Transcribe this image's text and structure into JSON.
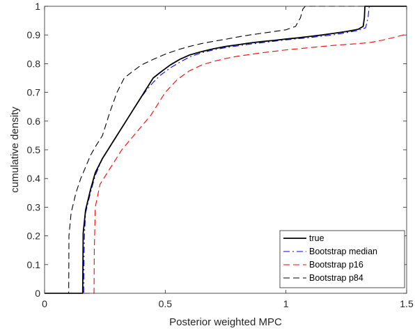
{
  "chart_data": {
    "type": "line",
    "title": "",
    "xlabel": "Posterior weighted MPC",
    "ylabel": "cumulative density",
    "xlim": [
      0,
      1.5
    ],
    "ylim": [
      0,
      1
    ],
    "x_ticks": [
      0,
      0.5,
      1,
      1.5
    ],
    "x_tick_labels": [
      "0",
      "0.5",
      "1",
      "1.5"
    ],
    "y_ticks": [
      0,
      0.1,
      0.2,
      0.3,
      0.4,
      0.5,
      0.6,
      0.7,
      0.8,
      0.9,
      1
    ],
    "y_tick_labels": [
      "0",
      "0.1",
      "0.2",
      "0.3",
      "0.4",
      "0.5",
      "0.6",
      "0.7",
      "0.8",
      "0.9",
      "1"
    ],
    "grid": false,
    "legend_position": "bottom-right",
    "series": [
      {
        "name": "true",
        "color": "#000000",
        "style": "solid",
        "x": [
          0,
          0.158,
          0.159,
          0.16,
          0.17,
          0.19,
          0.21,
          0.24,
          0.27,
          0.3,
          0.33,
          0.36,
          0.39,
          0.42,
          0.45,
          0.48,
          0.52,
          0.56,
          0.6,
          0.65,
          0.7,
          0.75,
          0.8,
          0.85,
          0.9,
          0.95,
          1.0,
          1.05,
          1.1,
          1.15,
          1.2,
          1.25,
          1.3,
          1.32,
          1.325,
          1.327,
          1.35,
          1.4,
          1.45,
          1.5
        ],
        "y": [
          0,
          0,
          0.1,
          0.21,
          0.29,
          0.36,
          0.42,
          0.47,
          0.51,
          0.55,
          0.59,
          0.63,
          0.67,
          0.71,
          0.75,
          0.77,
          0.795,
          0.815,
          0.83,
          0.842,
          0.852,
          0.86,
          0.866,
          0.872,
          0.877,
          0.881,
          0.886,
          0.89,
          0.895,
          0.9,
          0.906,
          0.912,
          0.92,
          0.93,
          0.96,
          1.0,
          1.0,
          1.0,
          1.0,
          1.0
        ]
      },
      {
        "name": "Bootstrap median",
        "color": "#0000ff",
        "style": "dashdot",
        "x": [
          0,
          0.162,
          0.163,
          0.165,
          0.17,
          0.19,
          0.21,
          0.24,
          0.27,
          0.3,
          0.33,
          0.36,
          0.39,
          0.42,
          0.45,
          0.48,
          0.52,
          0.56,
          0.6,
          0.65,
          0.7,
          0.75,
          0.8,
          0.85,
          0.9,
          0.95,
          1.0,
          1.05,
          1.1,
          1.15,
          1.2,
          1.25,
          1.3,
          1.33,
          1.34,
          1.345,
          1.35,
          1.4,
          1.45,
          1.5
        ],
        "y": [
          0,
          0,
          0.1,
          0.2,
          0.28,
          0.35,
          0.41,
          0.47,
          0.51,
          0.55,
          0.59,
          0.63,
          0.67,
          0.705,
          0.735,
          0.76,
          0.785,
          0.805,
          0.823,
          0.838,
          0.848,
          0.856,
          0.862,
          0.868,
          0.873,
          0.878,
          0.883,
          0.887,
          0.891,
          0.896,
          0.901,
          0.908,
          0.916,
          0.925,
          0.96,
          1.0,
          1.0,
          1.0,
          1.0,
          1.0
        ]
      },
      {
        "name": "Bootstrap p16",
        "color": "#ff0000",
        "style": "dashed",
        "x": [
          0,
          0.205,
          0.206,
          0.21,
          0.23,
          0.26,
          0.29,
          0.32,
          0.35,
          0.38,
          0.41,
          0.44,
          0.47,
          0.5,
          0.55,
          0.6,
          0.65,
          0.7,
          0.75,
          0.8,
          0.85,
          0.9,
          0.95,
          1.0,
          1.05,
          1.1,
          1.15,
          1.2,
          1.25,
          1.3,
          1.35,
          1.4,
          1.45,
          1.5
        ],
        "y": [
          0,
          0,
          0.15,
          0.3,
          0.38,
          0.42,
          0.46,
          0.5,
          0.53,
          0.56,
          0.59,
          0.62,
          0.66,
          0.7,
          0.745,
          0.775,
          0.795,
          0.808,
          0.818,
          0.826,
          0.832,
          0.838,
          0.843,
          0.848,
          0.852,
          0.856,
          0.86,
          0.864,
          0.867,
          0.87,
          0.874,
          0.882,
          0.892,
          0.903
        ]
      },
      {
        "name": "Bootstrap p84",
        "color": "#000000",
        "style": "dashed",
        "x": [
          0,
          0.1,
          0.101,
          0.11,
          0.13,
          0.15,
          0.17,
          0.19,
          0.21,
          0.24,
          0.27,
          0.3,
          0.33,
          0.36,
          0.4,
          0.45,
          0.5,
          0.55,
          0.6,
          0.65,
          0.7,
          0.75,
          0.8,
          0.85,
          0.9,
          0.95,
          1.0,
          1.04,
          1.06,
          1.07,
          1.08,
          1.1,
          1.2,
          1.3,
          1.4,
          1.5
        ],
        "y": [
          0,
          0,
          0.2,
          0.28,
          0.35,
          0.4,
          0.44,
          0.48,
          0.51,
          0.55,
          0.63,
          0.7,
          0.75,
          0.77,
          0.795,
          0.815,
          0.833,
          0.848,
          0.86,
          0.87,
          0.878,
          0.885,
          0.893,
          0.9,
          0.906,
          0.912,
          0.918,
          0.93,
          0.96,
          0.99,
          1.0,
          1.0,
          1.0,
          1.0,
          1.0,
          1.0
        ]
      }
    ]
  }
}
